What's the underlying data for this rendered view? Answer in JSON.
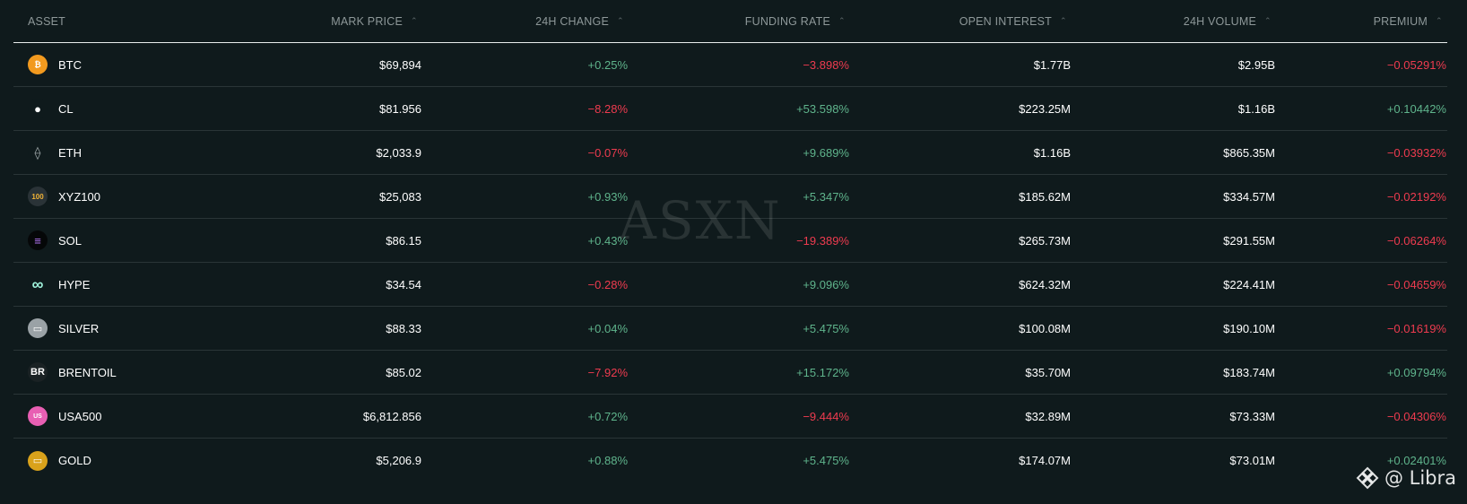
{
  "columns": {
    "asset": "ASSET",
    "mark_price": "MARK PRICE",
    "change_24h": "24H CHANGE",
    "funding_rate": "FUNDING RATE",
    "open_interest": "OPEN INTEREST",
    "volume_24h": "24H VOLUME",
    "premium": "PREMIUM"
  },
  "sort_indicator": "⌃",
  "colors": {
    "positive": "#5fb48c",
    "negative": "#ee3b4f",
    "background": "#0f1a1c"
  },
  "rows": [
    {
      "asset": "BTC",
      "icon": "bitcoin-icon",
      "icon_text": "₿",
      "mark_price": "$69,894",
      "change": "+0.25%",
      "change_sign": "pos",
      "funding": "−3.898%",
      "funding_sign": "neg",
      "oi": "$1.77B",
      "volume": "$2.95B",
      "premium": "−0.05291%",
      "premium_sign": "neg"
    },
    {
      "asset": "CL",
      "icon": "oil-drop-icon",
      "icon_text": "●",
      "mark_price": "$81.956",
      "change": "−8.28%",
      "change_sign": "neg",
      "funding": "+53.598%",
      "funding_sign": "pos",
      "oi": "$223.25M",
      "volume": "$1.16B",
      "premium": "+0.10442%",
      "premium_sign": "pos"
    },
    {
      "asset": "ETH",
      "icon": "ethereum-icon",
      "icon_text": "⟠",
      "mark_price": "$2,033.9",
      "change": "−0.07%",
      "change_sign": "neg",
      "funding": "+9.689%",
      "funding_sign": "pos",
      "oi": "$1.16B",
      "volume": "$865.35M",
      "premium": "−0.03932%",
      "premium_sign": "neg"
    },
    {
      "asset": "XYZ100",
      "icon": "xyz100-icon",
      "icon_text": "100",
      "mark_price": "$25,083",
      "change": "+0.93%",
      "change_sign": "pos",
      "funding": "+5.347%",
      "funding_sign": "pos",
      "oi": "$185.62M",
      "volume": "$334.57M",
      "premium": "−0.02192%",
      "premium_sign": "neg"
    },
    {
      "asset": "SOL",
      "icon": "solana-icon",
      "icon_text": "≡",
      "mark_price": "$86.15",
      "change": "+0.43%",
      "change_sign": "pos",
      "funding": "−19.389%",
      "funding_sign": "neg",
      "oi": "$265.73M",
      "volume": "$291.55M",
      "premium": "−0.06264%",
      "premium_sign": "neg"
    },
    {
      "asset": "HYPE",
      "icon": "hyperliquid-icon",
      "icon_text": "∞",
      "mark_price": "$34.54",
      "change": "−0.28%",
      "change_sign": "neg",
      "funding": "+9.096%",
      "funding_sign": "pos",
      "oi": "$624.32M",
      "volume": "$224.41M",
      "premium": "−0.04659%",
      "premium_sign": "neg"
    },
    {
      "asset": "SILVER",
      "icon": "silver-bars-icon",
      "icon_text": "▭",
      "mark_price": "$88.33",
      "change": "+0.04%",
      "change_sign": "pos",
      "funding": "+5.475%",
      "funding_sign": "pos",
      "oi": "$100.08M",
      "volume": "$190.10M",
      "premium": "−0.01619%",
      "premium_sign": "neg"
    },
    {
      "asset": "BRENTOIL",
      "icon": "brentoil-icon",
      "icon_text": "BR",
      "mark_price": "$85.02",
      "change": "−7.92%",
      "change_sign": "neg",
      "funding": "+15.172%",
      "funding_sign": "pos",
      "oi": "$35.70M",
      "volume": "$183.74M",
      "premium": "+0.09794%",
      "premium_sign": "pos"
    },
    {
      "asset": "USA500",
      "icon": "usa500-icon",
      "icon_text": "US",
      "mark_price": "$6,812.856",
      "change": "+0.72%",
      "change_sign": "pos",
      "funding": "−9.444%",
      "funding_sign": "neg",
      "oi": "$32.89M",
      "volume": "$73.33M",
      "premium": "−0.04306%",
      "premium_sign": "neg"
    },
    {
      "asset": "GOLD",
      "icon": "gold-bars-icon",
      "icon_text": "▭",
      "mark_price": "$5,206.9",
      "change": "+0.88%",
      "change_sign": "pos",
      "funding": "+5.475%",
      "funding_sign": "pos",
      "oi": "$174.07M",
      "volume": "$73.01M",
      "premium": "+0.02401%",
      "premium_sign": "pos"
    }
  ],
  "watermark": "ASXN",
  "brand": "@ Libra"
}
